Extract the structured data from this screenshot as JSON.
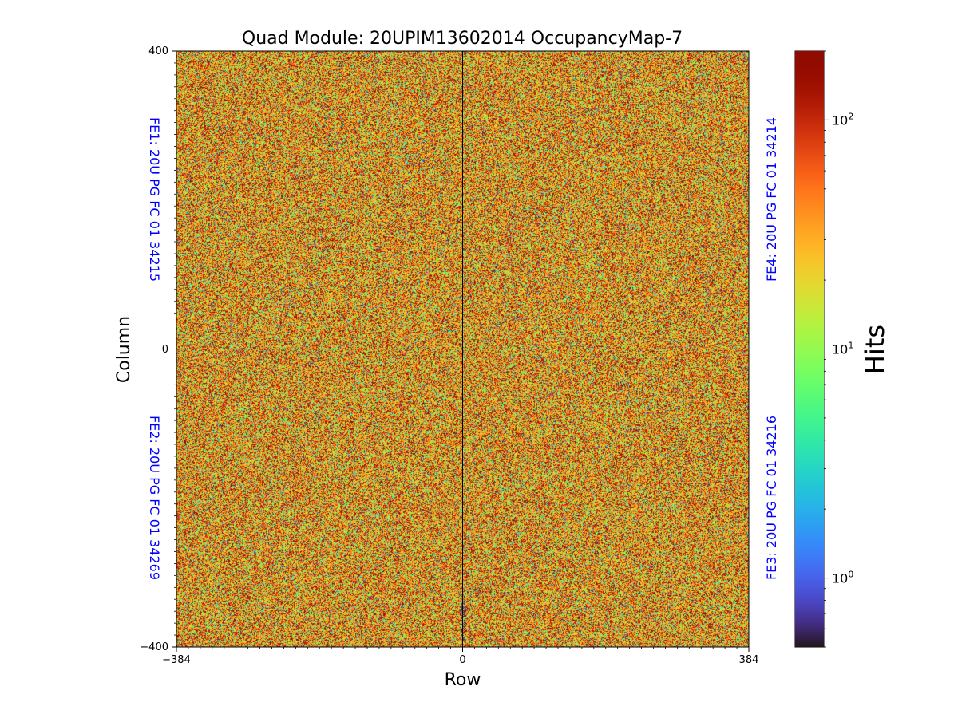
{
  "chart_data": {
    "type": "heatmap",
    "title": "Quad Module: 20UPIM13602014 OccupancyMap-7",
    "xlabel": "Row",
    "ylabel": "Column",
    "xlim": [
      -384,
      384
    ],
    "ylim": [
      -400,
      400
    ],
    "x_ticks": [
      -384,
      0,
      384
    ],
    "y_ticks": [
      -400,
      0,
      400
    ],
    "x_tick_labels": [
      "−384",
      "0",
      "384"
    ],
    "y_tick_labels": [
      "−400",
      "0",
      "400"
    ],
    "quadrant_labels": {
      "top_left": "FE1: 20U PG FC 01 34215",
      "bottom_left": "FE2: 20U PG FC 01 34269",
      "bottom_right": "FE3: 20U PG FC 01 34216",
      "top_right": "FE4: 20U PG FC 01 34214"
    },
    "quadrant_label_color": "#0000ff",
    "divider_lines": {
      "x": 0,
      "y": 0
    },
    "colorbar": {
      "label": "Hits",
      "scale": "log",
      "vmin": 0.5,
      "vmax": 200,
      "ticks": [
        1,
        10,
        100
      ],
      "tick_bases": [
        "10",
        "10",
        "10"
      ],
      "tick_exponents": [
        "0",
        "1",
        "2"
      ],
      "colormap": "turbo"
    },
    "distribution": {
      "typical_hits": 35,
      "spread_log10": 0.55,
      "sparse_dark_pixels_near": {
        "x": 0,
        "y": -360
      }
    }
  }
}
